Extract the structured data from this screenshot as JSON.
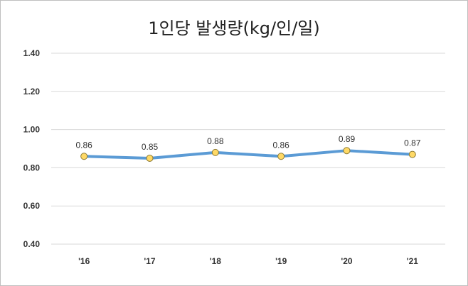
{
  "chart_data": {
    "type": "line",
    "title": "1인당 발생량(kg/인/일)",
    "xlabel": "",
    "ylabel": "",
    "categories": [
      "'16",
      "'17",
      "'18",
      "'19",
      "'20",
      "'21"
    ],
    "series": [
      {
        "name": "1인당 발생량",
        "values": [
          0.86,
          0.85,
          0.88,
          0.86,
          0.89,
          0.87
        ]
      }
    ],
    "data_labels": [
      "0.86",
      "0.85",
      "0.88",
      "0.86",
      "0.89",
      "0.87"
    ],
    "ylim": [
      0.4,
      1.4
    ],
    "yticks": [
      1.4,
      1.2,
      1.0,
      0.8,
      0.6,
      0.4
    ],
    "ytick_labels": [
      "1.40",
      "1.20",
      "1.00",
      "0.80",
      "0.60",
      "0.40"
    ],
    "grid": true,
    "colors": {
      "line": "#5b9bd5",
      "marker_fill": "#ffd966",
      "marker_stroke": "#8c7a33",
      "grid": "#d9d9d9"
    }
  }
}
